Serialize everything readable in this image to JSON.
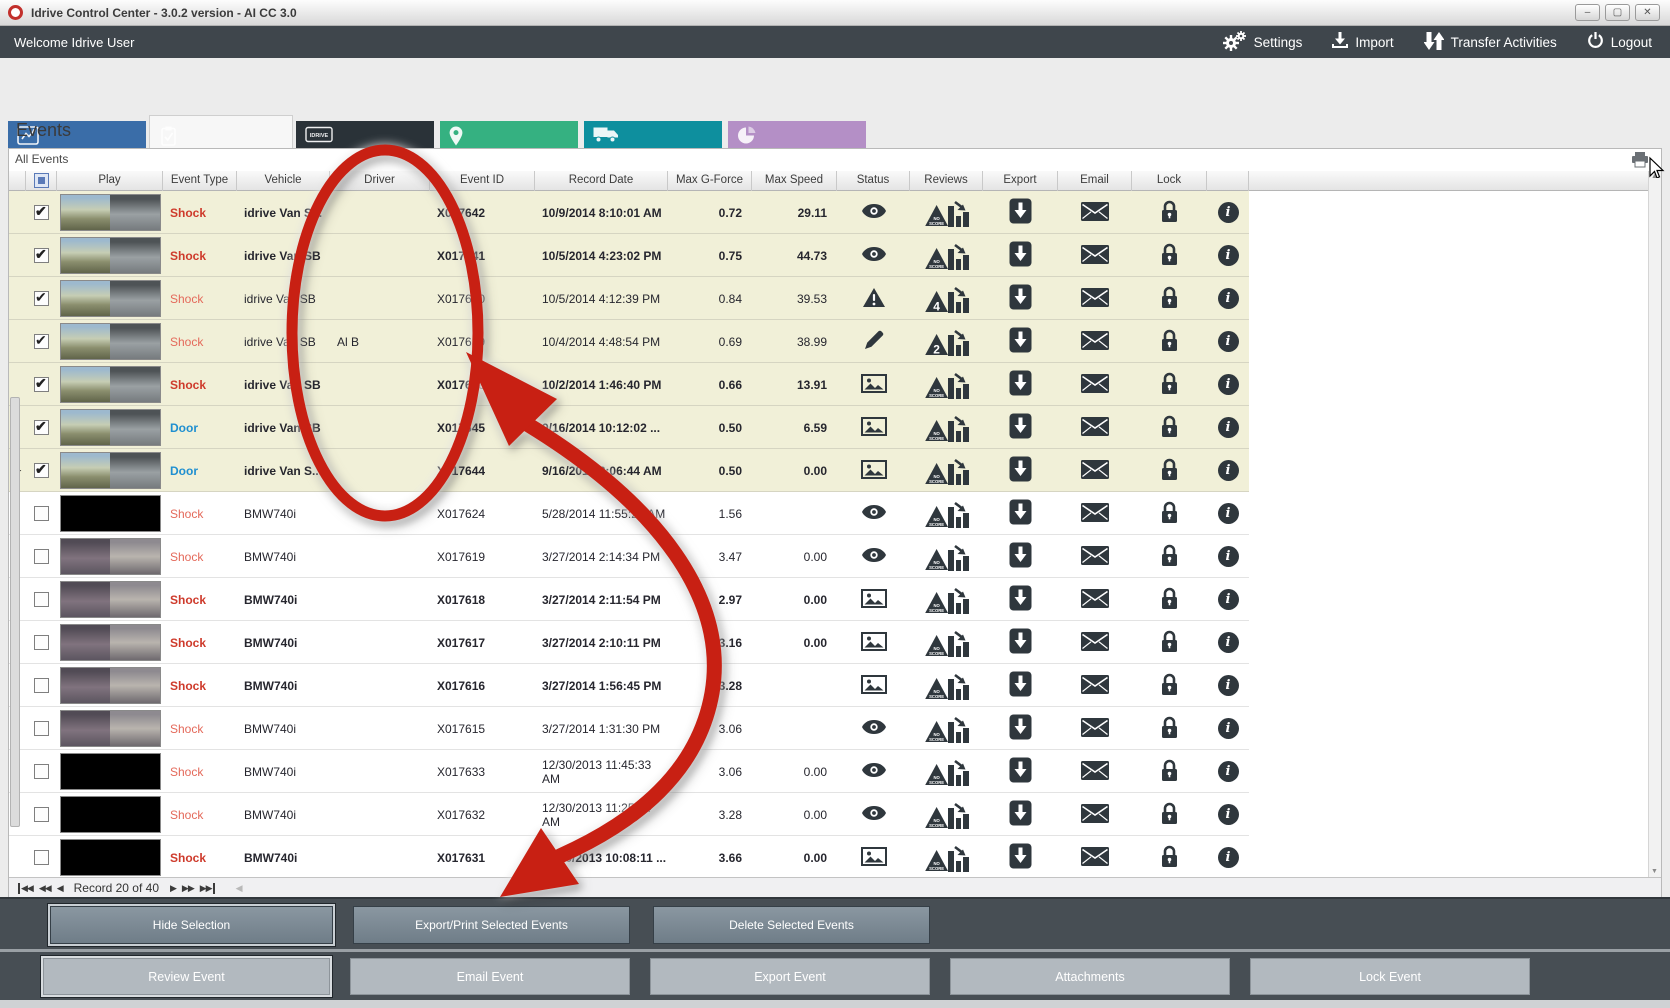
{
  "window": {
    "title": "Idrive Control Center - 3.0.2 version - AI CC 3.0",
    "controls": [
      {
        "name": "minimize",
        "glyph": "–"
      },
      {
        "name": "maximize",
        "glyph": "▢"
      },
      {
        "name": "close",
        "glyph": "✕"
      }
    ]
  },
  "topbar": {
    "welcome": "Welcome Idrive User",
    "actions": [
      {
        "label": "Settings",
        "icon": "gears-icon"
      },
      {
        "label": "Import",
        "icon": "import-icon"
      },
      {
        "label": "Transfer Activities",
        "icon": "transfer-icon"
      },
      {
        "label": "Logout",
        "icon": "power-icon"
      }
    ]
  },
  "tabs": [
    {
      "label": "Dashboard",
      "color": "#3a6da8",
      "icon": "chart",
      "selected": false
    },
    {
      "label": "Events & Reviews",
      "color": "#d2622b",
      "icon": "clipboard",
      "selected": true
    },
    {
      "label": "Dvr",
      "color": "#2a3238",
      "icon": "dvr",
      "selected": false
    },
    {
      "label": "GPS",
      "color": "#35b181",
      "icon": "pin",
      "selected": false
    },
    {
      "label": "Fleet Manager",
      "color": "#0e8f9e",
      "icon": "truck",
      "selected": false
    },
    {
      "label": "Reports",
      "color": "#b48fc6",
      "icon": "pie",
      "selected": false
    }
  ],
  "page_title": "Events",
  "grid": {
    "group_title": "All Events",
    "columns": [
      "",
      "",
      "Play",
      "Event Type",
      "Vehicle",
      "Driver",
      "Event ID",
      "Record Date",
      "Max G-Force",
      "Max Speed",
      "Status",
      "Reviews",
      "Export",
      "Email",
      "Lock",
      ""
    ],
    "rows": [
      {
        "checked": true,
        "indicator": false,
        "bold": true,
        "thumb": "day",
        "type": "Shock",
        "vehicle": "idrive Van S...",
        "driver": "",
        "id": "X017642",
        "date": "10/9/2014 8:10:01 AM",
        "gforce": "0.72",
        "speed": "29.11",
        "status": "eye",
        "review": "NO SCORE"
      },
      {
        "checked": true,
        "indicator": false,
        "bold": true,
        "thumb": "day",
        "type": "Shock",
        "vehicle": "idrive Van SB",
        "driver": "",
        "id": "X017641",
        "date": "10/5/2014 4:23:02 PM",
        "gforce": "0.75",
        "speed": "44.73",
        "status": "eye",
        "review": "NO SCORE"
      },
      {
        "checked": true,
        "indicator": false,
        "bold": false,
        "thumb": "day",
        "type": "Shock",
        "vehicle": "idrive Van SB",
        "driver": "",
        "id": "X017640",
        "date": "10/5/2014 4:12:39 PM",
        "gforce": "0.84",
        "speed": "39.53",
        "status": "warning",
        "review": "4"
      },
      {
        "checked": true,
        "indicator": false,
        "bold": false,
        "thumb": "day",
        "type": "Shock",
        "vehicle": "idrive Van SB",
        "driver": "Al B",
        "id": "X017639",
        "date": "10/4/2014 4:48:54 PM",
        "gforce": "0.69",
        "speed": "38.99",
        "status": "pencil",
        "review": "2"
      },
      {
        "checked": true,
        "indicator": false,
        "bold": true,
        "thumb": "day",
        "type": "Shock",
        "vehicle": "idrive Van SB",
        "driver": "",
        "id": "X017638",
        "date": "10/2/2014 1:46:40 PM",
        "gforce": "0.66",
        "speed": "13.91",
        "status": "picture",
        "review": "NO SCORE"
      },
      {
        "checked": true,
        "indicator": false,
        "bold": true,
        "thumb": "day",
        "type": "Door",
        "vehicle": "idrive Van SB",
        "driver": "",
        "id": "X017645",
        "date": "9/16/2014 10:12:02 ...",
        "gforce": "0.50",
        "speed": "6.59",
        "status": "picture",
        "review": "NO SCORE"
      },
      {
        "checked": true,
        "indicator": true,
        "bold": true,
        "thumb": "day",
        "type": "Door",
        "vehicle": "idrive Van S...",
        "driver": "",
        "id": "X017644",
        "date": "9/16/2014 8:06:44 AM",
        "gforce": "0.50",
        "speed": "0.00",
        "status": "picture",
        "review": "NO SCORE"
      },
      {
        "checked": false,
        "indicator": false,
        "bold": false,
        "thumb": "night",
        "type": "Shock",
        "vehicle": "BMW740i",
        "driver": "",
        "id": "X017624",
        "date": "5/28/2014 11:55:28 AM",
        "gforce": "1.56",
        "speed": "",
        "status": "eye",
        "review": "NO SCORE"
      },
      {
        "checked": false,
        "indicator": false,
        "bold": false,
        "thumb": "dim",
        "type": "Shock",
        "vehicle": "BMW740i",
        "driver": "",
        "id": "X017619",
        "date": "3/27/2014 2:14:34 PM",
        "gforce": "3.47",
        "speed": "0.00",
        "status": "eye",
        "review": "NO SCORE"
      },
      {
        "checked": false,
        "indicator": false,
        "bold": true,
        "thumb": "dim",
        "type": "Shock",
        "vehicle": "BMW740i",
        "driver": "",
        "id": "X017618",
        "date": "3/27/2014 2:11:54 PM",
        "gforce": "2.97",
        "speed": "0.00",
        "status": "picture",
        "review": "NO SCORE"
      },
      {
        "checked": false,
        "indicator": false,
        "bold": true,
        "thumb": "dim",
        "type": "Shock",
        "vehicle": "BMW740i",
        "driver": "",
        "id": "X017617",
        "date": "3/27/2014 2:10:11 PM",
        "gforce": "3.16",
        "speed": "0.00",
        "status": "picture",
        "review": "NO SCORE"
      },
      {
        "checked": false,
        "indicator": false,
        "bold": true,
        "thumb": "dim",
        "type": "Shock",
        "vehicle": "BMW740i",
        "driver": "",
        "id": "X017616",
        "date": "3/27/2014 1:56:45 PM",
        "gforce": "3.28",
        "speed": "",
        "status": "picture",
        "review": "NO SCORE"
      },
      {
        "checked": false,
        "indicator": false,
        "bold": false,
        "thumb": "dim",
        "type": "Shock",
        "vehicle": "BMW740i",
        "driver": "",
        "id": "X017615",
        "date": "3/27/2014 1:31:30 PM",
        "gforce": "3.06",
        "speed": "",
        "status": "eye",
        "review": "NO SCORE"
      },
      {
        "checked": false,
        "indicator": false,
        "bold": false,
        "thumb": "night",
        "type": "Shock",
        "vehicle": "BMW740i",
        "driver": "",
        "id": "X017633",
        "date": "12/30/2013 11:45:33 AM",
        "gforce": "3.06",
        "speed": "0.00",
        "status": "eye",
        "review": "NO SCORE"
      },
      {
        "checked": false,
        "indicator": false,
        "bold": false,
        "thumb": "night",
        "type": "Shock",
        "vehicle": "BMW740i",
        "driver": "",
        "id": "X017632",
        "date": "12/30/2013 11:25:14 AM",
        "gforce": "3.28",
        "speed": "0.00",
        "status": "eye",
        "review": "NO SCORE"
      },
      {
        "checked": false,
        "indicator": false,
        "bold": true,
        "thumb": "night",
        "type": "Shock",
        "vehicle": "BMW740i",
        "driver": "",
        "id": "X017631",
        "date": "12/30/2013 10:08:11 ...",
        "gforce": "3.66",
        "speed": "0.00",
        "status": "picture",
        "review": "NO SCORE"
      }
    ]
  },
  "pagination": {
    "label": "Record 20 of 40"
  },
  "action_bar": {
    "buttons": [
      "Hide Selection",
      "Export/Print Selected Events",
      "Delete Selected Events"
    ]
  },
  "event_bar": {
    "buttons": [
      "Review Event",
      "Email Event",
      "Export Event",
      "Attachments",
      "Lock Event"
    ]
  },
  "annotation": {
    "color": "#c82013"
  }
}
